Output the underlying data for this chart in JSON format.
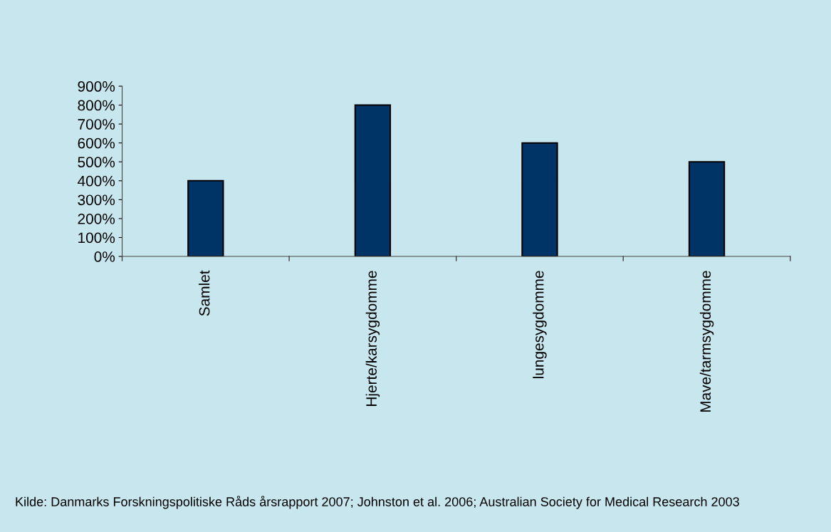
{
  "chart_data": {
    "type": "bar",
    "categories": [
      "Samlet",
      "Hjerte/karsygdomme",
      "lungesygdomme",
      "Mave/tarmsygdomme"
    ],
    "values": [
      400,
      800,
      600,
      500
    ],
    "color": "#003366",
    "ylim": [
      0,
      900
    ],
    "yticks": [
      {
        "value": 0,
        "label": "0%"
      },
      {
        "value": 100,
        "label": "100%"
      },
      {
        "value": 200,
        "label": "200%"
      },
      {
        "value": 300,
        "label": "300%"
      },
      {
        "value": 400,
        "label": "400%"
      },
      {
        "value": 500,
        "label": "500%"
      },
      {
        "value": 600,
        "label": "600%"
      },
      {
        "value": 700,
        "label": "700%"
      },
      {
        "value": 800,
        "label": "800%"
      },
      {
        "value": 900,
        "label": "900%"
      }
    ],
    "grid": false,
    "legend": false,
    "annotations": [
      "Kilde: Danmarks Forskningspolitiske Råds årsrapport 2007; Johnston et al. 2006; Australian Society for Medical Research 2003"
    ]
  }
}
